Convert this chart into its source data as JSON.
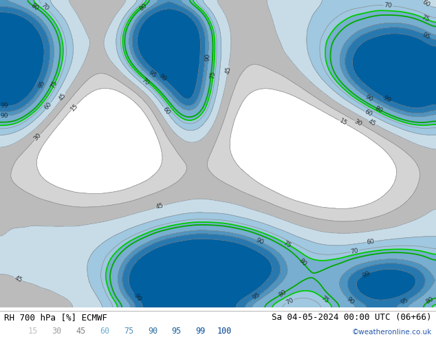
{
  "title_left": "RH 700 hPa [%] ECMWF",
  "title_right": "Sa 04-05-2024 00:00 UTC (06+66)",
  "credit": "©weatheronline.co.uk",
  "legend_values": [
    15,
    30,
    45,
    60,
    75,
    90,
    95,
    99,
    100
  ],
  "legend_text_colors": [
    "#c0c0c0",
    "#a0a0a0",
    "#808080",
    "#70b0d0",
    "#5090b8",
    "#3070a0",
    "#1060a0",
    "#0050a0",
    "#004090"
  ],
  "bounds": [
    0,
    15,
    30,
    45,
    60,
    75,
    90,
    95,
    99,
    101
  ],
  "fill_colors": [
    "#ffffff",
    "#d4d4d4",
    "#bbbbbb",
    "#c8dce8",
    "#a0c8e0",
    "#78aed0",
    "#4e94c0",
    "#2878b0",
    "#0060a0"
  ],
  "background_color": "#ffffff",
  "figsize": [
    6.34,
    4.9
  ],
  "dpi": 100
}
